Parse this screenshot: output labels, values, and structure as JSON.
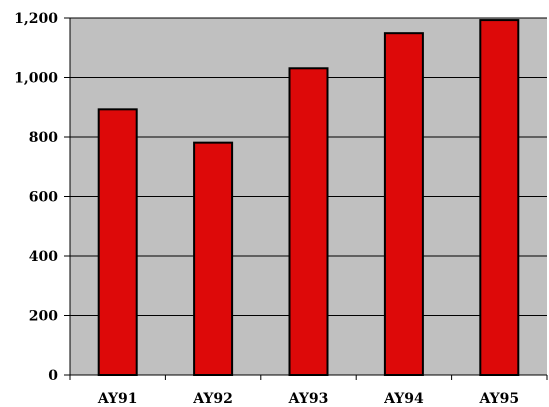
{
  "chart_data": {
    "type": "bar",
    "categories": [
      "AY91",
      "AY92",
      "AY93",
      "AY94",
      "AY95"
    ],
    "values": [
      893,
      781,
      1031,
      1149,
      1193
    ],
    "ylim": [
      0,
      1200
    ],
    "yticks": [
      0,
      200,
      400,
      600,
      800,
      1000,
      1200
    ],
    "ytick_labels": [
      "0",
      "200",
      "400",
      "600",
      "800",
      "1,000",
      "1,200"
    ],
    "title": "",
    "xlabel": "",
    "ylabel": "",
    "grid": true,
    "legend": "none",
    "colors": {
      "bar": "#dd0909",
      "bar_outline": "#000000",
      "plot_background": "#c0c0c0",
      "gridline": "#000000"
    }
  }
}
